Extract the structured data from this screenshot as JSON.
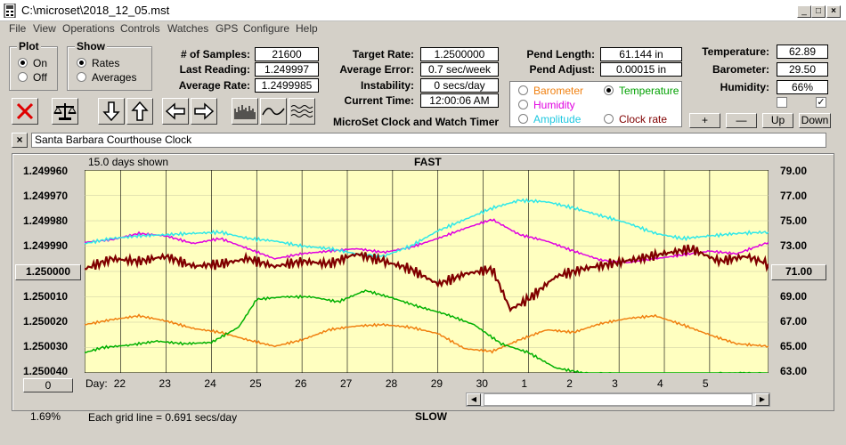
{
  "window": {
    "title": "C:\\microset\\2018_12_05.mst"
  },
  "menu": [
    "File",
    "View",
    "Operations",
    "Controls",
    "Watches",
    "GPS",
    "Configure",
    "Help"
  ],
  "plot": {
    "title": "Plot",
    "on": "On",
    "off": "Off"
  },
  "show": {
    "title": "Show",
    "rates": "Rates",
    "averages": "Averages"
  },
  "stats": {
    "samples_label": "# of Samples:",
    "samples": "21600",
    "last_label": "Last Reading:",
    "last": "1.249997",
    "avg_rate_label": "Average Rate:",
    "avg_rate": "1.2499985",
    "target_label": "Target Rate:",
    "target": "1.2500000",
    "avg_err_label": "Average Error:",
    "avg_err": "0.7 sec/week",
    "instab_label": "Instability:",
    "instab": "0 secs/day",
    "time_label": "Current Time:",
    "time": "12:00:06 AM",
    "pend_len_label": "Pend Length:",
    "pend_len": "61.144 in",
    "pend_adj_label": "Pend Adjust:",
    "pend_adj": "0.00015 in",
    "temp_label": "Temperature:",
    "temp": "62.89",
    "baro_label": "Barometer:",
    "baro": "29.50",
    "hum_label": "Humidity:",
    "hum": "66%"
  },
  "app_name": "MicroSet Clock and Watch Timer",
  "sensors": {
    "barometer": "Barometer",
    "temperature": "Temperature",
    "humidity": "Humidity",
    "amplitude": "Amplitude",
    "clock_rate": "Clock rate"
  },
  "adjust_buttons": {
    "plus": "+",
    "minus": "—",
    "up": "Up",
    "down": "Down"
  },
  "clock_name": "Santa Barbara Courthouse Clock",
  "chart_header": {
    "days_shown": "15.0 days shown",
    "fast": "FAST",
    "slow": "SLOW"
  },
  "footer": {
    "zero_button": "0",
    "percent": "1.69%",
    "grid_note": "Each grid line = 0.691 secs/day",
    "day_label": "Day:",
    "right_axis_button": "71.00",
    "left_axis_button": "1.250000"
  },
  "colors": {
    "rate": "#800000",
    "temperature": "#00b000",
    "humidity": "#e000e0",
    "amplitude": "#30e8e8",
    "barometer": "#f08010",
    "plot_bg": "#ffffc0"
  },
  "chart_data": {
    "type": "line",
    "x_label": "Day:",
    "x_ticks": [
      "22",
      "23",
      "24",
      "25",
      "26",
      "27",
      "28",
      "29",
      "30",
      "1",
      "2",
      "3",
      "4",
      "5"
    ],
    "y_left_ticks": [
      "1.249960",
      "1.249970",
      "1.249980",
      "1.249990",
      "1.250000",
      "1.250010",
      "1.250020",
      "1.250030",
      "1.250040"
    ],
    "y_left_range": [
      1.24996,
      1.25004
    ],
    "y_right_ticks": [
      "79.00",
      "77.00",
      "75.00",
      "73.00",
      "71.00",
      "69.00",
      "67.00",
      "65.00",
      "63.00"
    ],
    "y_right_range": [
      63,
      79
    ],
    "x_range": [
      21.2,
      36.3
    ],
    "series": [
      {
        "name": "Clock rate",
        "axis": "left",
        "x": [
          21.2,
          21.8,
          22.4,
          23.0,
          23.6,
          24.2,
          24.8,
          25.4,
          26.0,
          26.6,
          27.2,
          27.8,
          28.4,
          29.0,
          29.6,
          30.2,
          30.6,
          31.0,
          31.6,
          32.2,
          32.8,
          33.4,
          34.0,
          34.6,
          35.2,
          35.8,
          36.3
        ],
        "y": [
          1.249999,
          1.249995,
          1.249996,
          1.249994,
          1.249998,
          1.249997,
          1.249995,
          1.249998,
          1.249996,
          1.249997,
          1.249993,
          1.249996,
          1.249999,
          1.250005,
          1.250001,
          1.249999,
          1.250015,
          1.250011,
          1.250002,
          1.249999,
          1.249997,
          1.249995,
          1.249993,
          1.249991,
          1.249996,
          1.249994,
          1.249997
        ]
      },
      {
        "name": "Temperature",
        "axis": "right",
        "x": [
          21.2,
          21.6,
          22.2,
          22.8,
          23.4,
          24.0,
          24.6,
          25.0,
          25.6,
          26.2,
          26.8,
          27.4,
          28.0,
          28.6,
          29.2,
          29.8,
          30.4,
          31.0,
          31.6,
          32.2,
          33.0,
          34.0,
          35.0,
          35.6,
          36.3
        ],
        "y": [
          64.6,
          65.0,
          65.2,
          65.5,
          65.3,
          65.4,
          66.6,
          68.8,
          69.0,
          69.0,
          68.6,
          69.5,
          68.9,
          68.2,
          67.6,
          66.8,
          65.3,
          64.6,
          63.4,
          63.0,
          62.9,
          62.9,
          62.9,
          63.0,
          62.9
        ]
      },
      {
        "name": "Humidity",
        "axis": "right",
        "x": [
          21.2,
          21.8,
          22.4,
          23.0,
          23.6,
          24.2,
          24.8,
          25.4,
          26.0,
          26.6,
          27.2,
          27.8,
          28.4,
          29.0,
          29.6,
          30.2,
          30.8,
          31.4,
          32.0,
          32.6,
          33.2,
          33.8,
          34.4,
          35.0,
          35.6,
          36.3
        ],
        "y": [
          73.3,
          73.5,
          74.0,
          73.8,
          73.2,
          73.6,
          72.8,
          72.0,
          72.4,
          72.6,
          72.8,
          72.5,
          72.9,
          73.6,
          74.4,
          75.1,
          73.9,
          73.4,
          72.6,
          71.9,
          71.7,
          72.0,
          72.3,
          72.6,
          72.4,
          73.3
        ]
      },
      {
        "name": "Amplitude",
        "axis": "right",
        "x": [
          21.2,
          21.8,
          22.4,
          23.0,
          23.6,
          24.2,
          24.8,
          25.4,
          26.0,
          26.6,
          27.2,
          27.8,
          28.4,
          29.0,
          29.6,
          30.2,
          30.8,
          31.4,
          32.0,
          32.6,
          33.2,
          33.8,
          34.4,
          35.0,
          35.6,
          36.3
        ],
        "y": [
          73.2,
          73.6,
          73.8,
          73.9,
          74.0,
          74.1,
          73.6,
          73.4,
          73.0,
          72.8,
          72.4,
          72.2,
          73.0,
          74.2,
          75.1,
          76.0,
          76.6,
          76.5,
          76.0,
          75.4,
          74.8,
          74.0,
          73.6,
          73.8,
          74.0,
          74.1
        ]
      },
      {
        "name": "Barometer",
        "axis": "right",
        "x": [
          21.2,
          21.8,
          22.4,
          23.0,
          23.6,
          24.2,
          24.8,
          25.4,
          26.0,
          26.6,
          27.2,
          27.8,
          28.4,
          29.0,
          29.6,
          30.2,
          30.8,
          31.4,
          32.0,
          32.6,
          33.2,
          33.8,
          34.4,
          35.0,
          35.6,
          36.3
        ],
        "y": [
          66.8,
          67.2,
          67.5,
          67.1,
          66.5,
          66.2,
          65.6,
          65.1,
          65.6,
          66.4,
          66.7,
          66.8,
          66.6,
          66.1,
          64.9,
          64.7,
          65.6,
          66.4,
          66.2,
          66.9,
          67.3,
          67.5,
          66.8,
          66.0,
          65.3,
          65.1
        ]
      }
    ]
  }
}
